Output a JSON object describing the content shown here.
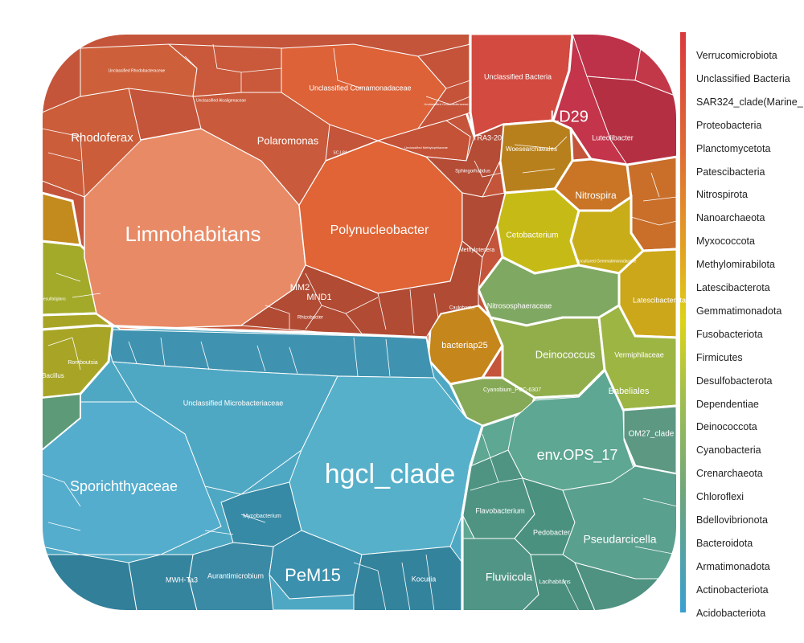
{
  "chart_data": {
    "type": "voronoi-treemap",
    "title": "",
    "legend": {
      "position": "right",
      "entries": [
        {
          "name": "Verrucomicrobiota",
          "color": "#d93a3c"
        },
        {
          "name": "Unclassified Bacteria",
          "color": "#d5453b"
        },
        {
          "name": "SAR324_clade(Marine_",
          "color": "#d9523a"
        },
        {
          "name": "Proteobacteria",
          "color": "#de5e38"
        },
        {
          "name": "Planctomycetota",
          "color": "#e06a35"
        },
        {
          "name": "Patescibacteria",
          "color": "#e17631"
        },
        {
          "name": "Nitrospirota",
          "color": "#e2832e"
        },
        {
          "name": "Nanoarchaeota",
          "color": "#e2902a"
        },
        {
          "name": "Myxococcota",
          "color": "#e39d25"
        },
        {
          "name": "Methylomirabilota",
          "color": "#e3aa1f"
        },
        {
          "name": "Latescibacterota",
          "color": "#e3b919"
        },
        {
          "name": "Gemmatimonadota",
          "color": "#e1c816"
        },
        {
          "name": "Fusobacteriota",
          "color": "#dcd316"
        },
        {
          "name": "Firmicutes",
          "color": "#c8cd2c"
        },
        {
          "name": "Desulfobacterota",
          "color": "#b4c63e"
        },
        {
          "name": "Dependentiae",
          "color": "#a3c04d"
        },
        {
          "name": "Deinococcota",
          "color": "#93b95a"
        },
        {
          "name": "Cyanobacteria",
          "color": "#85b266"
        },
        {
          "name": "Crenarchaeota",
          "color": "#79ab72"
        },
        {
          "name": "Chloroflexi",
          "color": "#6ea57d"
        },
        {
          "name": "Bdellovibrionota",
          "color": "#649f88"
        },
        {
          "name": "Bacteroidota",
          "color": "#5c9993"
        },
        {
          "name": "Armatimonadota",
          "color": "#5095a6"
        },
        {
          "name": "Actinobacteriota",
          "color": "#4397b8"
        },
        {
          "name": "Acidobacteriota",
          "color": "#3a9fd0"
        }
      ]
    },
    "cells": [
      {
        "label": "Limnohabitans",
        "group": "Proteobacteria",
        "color": "#e88a66"
      },
      {
        "label": "Polynucleobacter",
        "group": "Proteobacteria",
        "color": "#e06436"
      },
      {
        "label": "Rhodoferax",
        "group": "Proteobacteria",
        "color": "#cb5d3a"
      },
      {
        "label": "Unclassified Rhodobacteraceae",
        "group": "Proteobacteria",
        "color": "#cd603a"
      },
      {
        "label": "Unclassified Alcaligenaceae",
        "group": "Proteobacteria",
        "color": "#c9593a"
      },
      {
        "label": "Polaromonas",
        "group": "Proteobacteria",
        "color": "#c95a3b"
      },
      {
        "label": "Unclassified Comamonadaceae",
        "group": "Proteobacteria",
        "color": "#dd6238"
      },
      {
        "label": "Unclassified Oxalobacteraceae",
        "group": "Proteobacteria",
        "color": "#c55339"
      },
      {
        "label": "Unclassified Methylophilaceae",
        "group": "Proteobacteria",
        "color": "#c45237"
      },
      {
        "label": "SC-I-84",
        "group": "Proteobacteria",
        "color": "#c0513a"
      },
      {
        "label": "TRA3-20",
        "group": "Proteobacteria",
        "color": "#b94f37"
      },
      {
        "label": "Sphingorhabdus",
        "group": "Proteobacteria",
        "color": "#b54c36"
      },
      {
        "label": "Methylotenera",
        "group": "Proteobacteria",
        "color": "#b14b35"
      },
      {
        "label": "MM2",
        "group": "Proteobacteria",
        "color": "#b84e36"
      },
      {
        "label": "MND1",
        "group": "Proteobacteria",
        "color": "#b54c35"
      },
      {
        "label": "Rhizobacter",
        "group": "Proteobacteria",
        "color": "#b24b34"
      },
      {
        "label": "Caulobacter",
        "group": "Proteobacteria",
        "color": "#b04a34"
      },
      {
        "label": "Unclassified Bacteria",
        "group": "Unclassified Bacteria",
        "color": "#d24a40"
      },
      {
        "label": "LD29",
        "group": "Verrucomicrobiota",
        "color": "#c4344a"
      },
      {
        "label": "Luteolibacter",
        "group": "Verrucomicrobiota",
        "color": "#b92f44"
      },
      {
        "label": "Woesearchaeales",
        "group": "Nanoarchaeota",
        "color": "#b8801c"
      },
      {
        "label": "Nitrospira",
        "group": "Nitrospirota",
        "color": "#c97525"
      },
      {
        "label": "Cetobacterium",
        "group": "Fusobacteriota",
        "color": "#c6bb16"
      },
      {
        "label": "Uncultured Gemmatimonadaceae",
        "group": "Gemmatimonadota",
        "color": "#c9ad18"
      },
      {
        "label": "Latescibacterota",
        "group": "Latescibacterota",
        "color": "#cca71a"
      },
      {
        "label": "Nitrososphaeraceae",
        "group": "Crenarchaeota",
        "color": "#7fa862"
      },
      {
        "label": "bacteriap25",
        "group": "Myxococcota",
        "color": "#c5861c"
      },
      {
        "label": "Deinococcus",
        "group": "Deinococcota",
        "color": "#91ae4b"
      },
      {
        "label": "Vermiphilaceae",
        "group": "Dependentiae",
        "color": "#9db543"
      },
      {
        "label": "Babeliales",
        "group": "Dependentiae",
        "color": "#98b044"
      },
      {
        "label": "Cyanobium_PCC-6307",
        "group": "Cyanobacteria",
        "color": "#86a957"
      },
      {
        "label": "Desulfatiglans",
        "group": "Desulfobacterota",
        "color": "#a3aa2a"
      },
      {
        "label": "Romboutsia",
        "group": "Firmicutes",
        "color": "#a8a526"
      },
      {
        "label": "Bacillus",
        "group": "Firmicutes",
        "color": "#a09f26"
      },
      {
        "label": "Unclassified Microbacteriaceae",
        "group": "Actinobacteriota",
        "color": "#4fa8c3"
      },
      {
        "label": "Sporichthyaceae",
        "group": "Actinobacteriota",
        "color": "#55adcd"
      },
      {
        "label": "hgcl_clade",
        "group": "Actinobacteriota",
        "color": "#56b0c9"
      },
      {
        "label": "Mycobacterium",
        "group": "Actinobacteriota",
        "color": "#368aa5"
      },
      {
        "label": "PeM15",
        "group": "Actinobacteriota",
        "color": "#3b90ad"
      },
      {
        "label": "Aurantimicrobium",
        "group": "Actinobacteriota",
        "color": "#3a8aa5"
      },
      {
        "label": "MWH-Ta3",
        "group": "Actinobacteriota",
        "color": "#35849e"
      },
      {
        "label": "Kocuria",
        "group": "Actinobacteriota",
        "color": "#34839d"
      },
      {
        "label": "env.OPS_17",
        "group": "Bacteroidota",
        "color": "#5ea792"
      },
      {
        "label": "Flavobacterium",
        "group": "Bacteroidota",
        "color": "#4f9482"
      },
      {
        "label": "Pedobacter",
        "group": "Bacteroidota",
        "color": "#4b917f"
      },
      {
        "label": "Pseudarcicella",
        "group": "Bacteroidota",
        "color": "#5aa08e"
      },
      {
        "label": "Fluviicola",
        "group": "Bacteroidota",
        "color": "#509585"
      },
      {
        "label": "Lacihabitans",
        "group": "Bacteroidota",
        "color": "#4a8f7d"
      },
      {
        "label": "OM27_clade",
        "group": "Bdellovibrionota",
        "color": "#5d9883"
      }
    ]
  }
}
